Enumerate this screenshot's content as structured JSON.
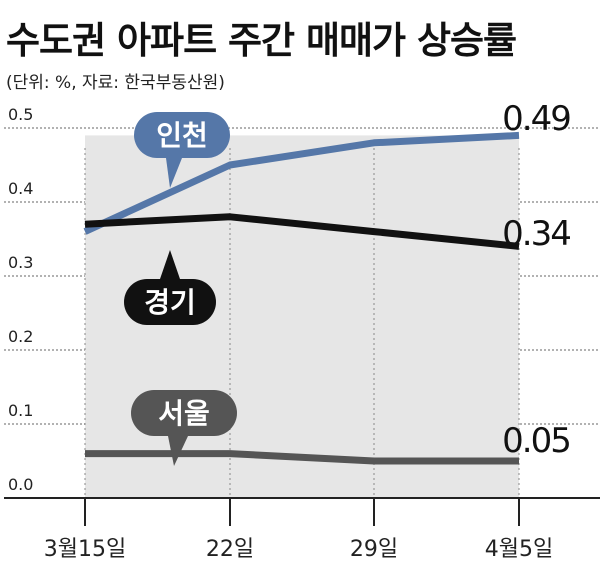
{
  "title": "수도권 아파트 주간 매매가 상승률",
  "subtitle": "(단위: %, 자료: 한국부동산원)",
  "chart_data": {
    "type": "line",
    "categories": [
      "3월15일",
      "22일",
      "29일",
      "4월5일"
    ],
    "ylim": [
      0,
      0.5
    ],
    "yticks": [
      "0.0",
      "0.1",
      "0.2",
      "0.3",
      "0.4",
      "0.5"
    ],
    "grid": true,
    "series": [
      {
        "name": "인천",
        "values": [
          0.36,
          0.45,
          0.48,
          0.49
        ],
        "color": "#5577a8",
        "end_label": "0.49"
      },
      {
        "name": "경기",
        "values": [
          0.37,
          0.38,
          0.36,
          0.34
        ],
        "color": "#111111",
        "end_label": "0.34"
      },
      {
        "name": "서울",
        "values": [
          0.06,
          0.06,
          0.05,
          0.05
        ],
        "color": "#555555",
        "end_label": "0.05"
      }
    ]
  }
}
